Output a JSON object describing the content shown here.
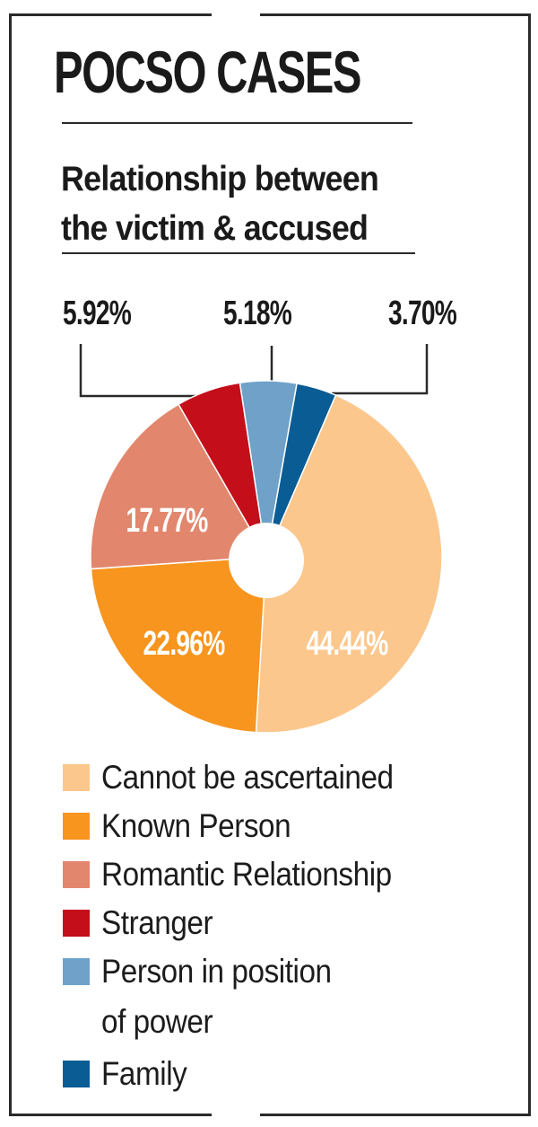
{
  "header": {
    "title": "POCSO CASES",
    "subtitle_line1": "Relationship between",
    "subtitle_line2": "the victim & accused"
  },
  "callouts": {
    "stranger": "5.92%",
    "person_in_power": "5.18%",
    "family": "3.70%"
  },
  "pie_labels": {
    "romantic": "17.77%",
    "known": "22.96%",
    "cannot": "44.44%"
  },
  "legend": {
    "items": [
      {
        "label": "Cannot be ascertained",
        "color": "#FCC78C"
      },
      {
        "label": "Known Person",
        "color": "#F7951F"
      },
      {
        "label": "Romantic Relationship",
        "color": "#E2876D"
      },
      {
        "label": "Stranger",
        "color": "#C40E1A"
      },
      {
        "label": "Person in position",
        "label_line2": "of power",
        "color": "#6FA1C9"
      },
      {
        "label": "Family",
        "color": "#0A5C95"
      }
    ]
  },
  "chart_data": {
    "type": "pie",
    "variant": "donut",
    "title": "POCSO CASES",
    "subtitle": "Relationship between the victim & accused",
    "categories": [
      "Cannot be ascertained",
      "Known Person",
      "Romantic Relationship",
      "Stranger",
      "Person in position of power",
      "Family"
    ],
    "values": [
      44.44,
      22.96,
      17.77,
      5.92,
      5.18,
      3.7
    ],
    "unit": "%",
    "colors": [
      "#FCC78C",
      "#F7951F",
      "#E2876D",
      "#C40E1A",
      "#6FA1C9",
      "#0A5C95"
    ],
    "legend_position": "bottom",
    "data_labels": [
      "44.44%",
      "22.96%",
      "17.77%",
      "5.92%",
      "5.18%",
      "3.70%"
    ]
  }
}
